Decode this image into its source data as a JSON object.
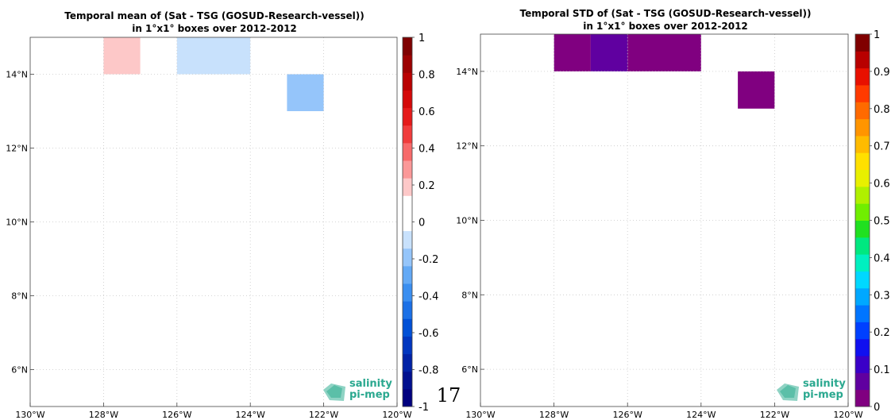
{
  "page_number": "17",
  "logo": {
    "line1": "salinity",
    "line2": "pi-mep",
    "color": "#2aa88f"
  },
  "chart_data": [
    {
      "type": "heatmap",
      "title_line1": "Temporal mean of (Sat - TSG (GOSUD-Research-vessel))",
      "title_line2": "in 1°x1° boxes over 2012-2012",
      "xlim": [
        -130,
        -120
      ],
      "ylim": [
        5,
        15
      ],
      "x_ticks": [
        -130,
        -128,
        -126,
        -124,
        -122,
        -120
      ],
      "x_tick_labels": [
        "130°W",
        "128°W",
        "126°W",
        "124°W",
        "122°W",
        "120°W"
      ],
      "y_ticks": [
        6,
        8,
        10,
        12,
        14
      ],
      "y_tick_labels": [
        "6°N",
        "8°N",
        "10°N",
        "12°N",
        "14°N"
      ],
      "grid": true,
      "colorbar": {
        "vmin": -1,
        "vmax": 1,
        "ticks": [
          -1,
          -0.8,
          -0.6,
          -0.4,
          -0.2,
          0,
          0.2,
          0.4,
          0.6,
          0.8,
          1
        ],
        "tick_labels": [
          "-1",
          "-0.8",
          "-0.6",
          "-0.4",
          "-0.2",
          "0",
          "0.2",
          "0.4",
          "0.6",
          "0.8",
          "1"
        ],
        "colors": [
          "#00007f",
          "#00108f",
          "#0022a6",
          "#0036bf",
          "#0050d6",
          "#1b70e6",
          "#3a8ef0",
          "#63a9f5",
          "#95c5fa",
          "#c8e1fc",
          "#ffffff",
          "#ffffff",
          "#fdc8c8",
          "#fb9898",
          "#f76a6a",
          "#f03c3c",
          "#e51a1a",
          "#d40808",
          "#b90000",
          "#9c0000",
          "#7f0000"
        ]
      },
      "cells": [
        {
          "lon": -128,
          "lat": 14,
          "value": 0.12,
          "color": "#fdc8c8"
        },
        {
          "lon": -126,
          "lat": 14,
          "value": -0.12,
          "color": "#c8e1fc"
        },
        {
          "lon": -125,
          "lat": 14,
          "value": -0.12,
          "color": "#c8e1fc"
        },
        {
          "lon": -123,
          "lat": 13,
          "value": -0.28,
          "color": "#95c5fa"
        }
      ]
    },
    {
      "type": "heatmap",
      "title_line1": "Temporal STD of (Sat - TSG (GOSUD-Research-vessel))",
      "title_line2": "in 1°x1° boxes over 2012-2012",
      "xlim": [
        -130,
        -120
      ],
      "ylim": [
        5,
        15
      ],
      "x_ticks": [
        -130,
        -128,
        -126,
        -124,
        -122,
        -120
      ],
      "x_tick_labels": [
        "130°W",
        "128°W",
        "126°W",
        "124°W",
        "122°W",
        "120°W"
      ],
      "y_ticks": [
        6,
        8,
        10,
        12,
        14
      ],
      "y_tick_labels": [
        "6°N",
        "8°N",
        "10°N",
        "12°N",
        "14°N"
      ],
      "grid": true,
      "colorbar": {
        "vmin": 0,
        "vmax": 1,
        "ticks": [
          0,
          0.1,
          0.2,
          0.3,
          0.4,
          0.5,
          0.6,
          0.7,
          0.8,
          0.9,
          1
        ],
        "tick_labels": [
          "0",
          "0.1",
          "0.2",
          "0.3",
          "0.4",
          "0.5",
          "0.6",
          "0.7",
          "0.8",
          "0.9",
          "1"
        ],
        "colors": [
          "#800080",
          "#6000a0",
          "#3a00c8",
          "#1010f0",
          "#0040ff",
          "#0075ff",
          "#00a8ff",
          "#00d8ff",
          "#00f0c0",
          "#00e880",
          "#20e020",
          "#70ee00",
          "#b0f000",
          "#e8f000",
          "#ffe000",
          "#ffbb00",
          "#ff9500",
          "#ff6a00",
          "#ff3a00",
          "#e81000",
          "#b80000",
          "#800000"
        ]
      },
      "cells": [
        {
          "lon": -128,
          "lat": 14,
          "value": 0.02,
          "color": "#800080"
        },
        {
          "lon": -127,
          "lat": 14,
          "value": 0.07,
          "color": "#6000a0"
        },
        {
          "lon": -126,
          "lat": 14,
          "value": 0.02,
          "color": "#800080"
        },
        {
          "lon": -125,
          "lat": 14,
          "value": 0.02,
          "color": "#800080"
        },
        {
          "lon": -123,
          "lat": 13,
          "value": 0.02,
          "color": "#800080"
        }
      ]
    }
  ]
}
